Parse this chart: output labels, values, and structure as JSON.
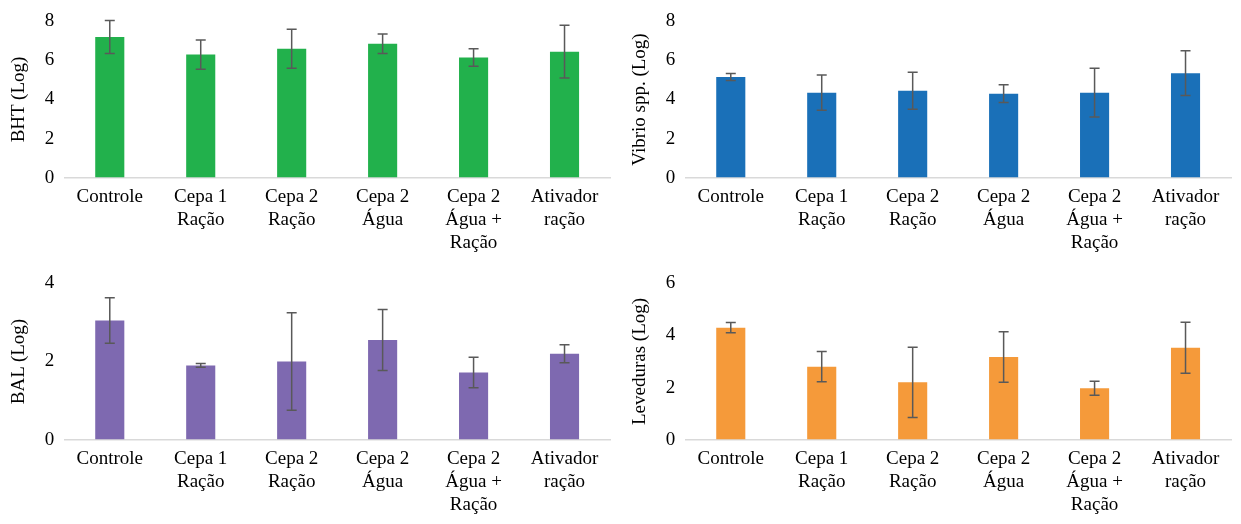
{
  "chart_data": [
    {
      "type": "bar",
      "ylabel": "BHT (Log)",
      "categories": [
        "Controle",
        "Cepa 1\nRação",
        "Cepa 2\nRação",
        "Cepa 2\nÁgua",
        "Cepa 2\nÁgua +\nRação",
        "Ativador\nração"
      ],
      "values": [
        7.2,
        6.3,
        6.6,
        6.85,
        6.15,
        6.45
      ],
      "errors": [
        0.85,
        0.75,
        1.0,
        0.5,
        0.45,
        1.35
      ],
      "color": "#22b14c",
      "ylim": [
        0,
        8
      ],
      "yticks": [
        0,
        2,
        4,
        6,
        8
      ]
    },
    {
      "type": "bar",
      "ylabel": "Vibrio spp. (Log)",
      "categories": [
        "Controle",
        "Cepa 1\nRação",
        "Cepa 2\nRação",
        "Cepa 2\nÁgua",
        "Cepa 2\nÁgua +\nRação",
        "Ativador\nração"
      ],
      "values": [
        5.15,
        4.35,
        4.45,
        4.3,
        4.35,
        5.35
      ],
      "errors": [
        0.18,
        0.9,
        0.95,
        0.45,
        1.25,
        1.15
      ],
      "color": "#1a70b8",
      "ylim": [
        0,
        8
      ],
      "yticks": [
        0,
        2,
        4,
        6,
        8
      ]
    },
    {
      "type": "bar",
      "ylabel": "BAL (Log)",
      "categories": [
        "Controle",
        "Cepa 1\nRação",
        "Cepa 2\nRação",
        "Cepa 2\nÁgua",
        "Cepa 2\nÁgua +\nRação",
        "Ativador\nração"
      ],
      "values": [
        3.05,
        1.9,
        2.0,
        2.55,
        1.72,
        2.2
      ],
      "errors": [
        0.58,
        0.05,
        1.25,
        0.78,
        0.39,
        0.23
      ],
      "color": "#7e69b0",
      "ylim": [
        0,
        4
      ],
      "yticks": [
        0,
        2,
        4
      ]
    },
    {
      "type": "bar",
      "ylabel": "Leveduras (Log)",
      "categories": [
        "Controle",
        "Cepa 1\nRação",
        "Cepa 2\nRação",
        "Cepa 2\nÁgua",
        "Cepa 2\nÁgua +\nRação",
        "Ativador\nração"
      ],
      "values": [
        4.3,
        2.8,
        2.2,
        3.17,
        1.97,
        3.53
      ],
      "errors": [
        0.2,
        0.58,
        1.35,
        0.97,
        0.27,
        0.98
      ],
      "color": "#f59a3a",
      "ylim": [
        0,
        6
      ],
      "yticks": [
        0,
        2,
        4,
        6
      ]
    }
  ]
}
